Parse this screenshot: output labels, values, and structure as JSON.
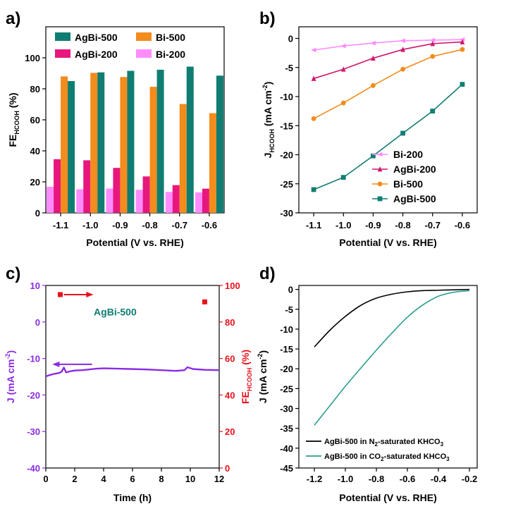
{
  "chart_data": [
    {
      "panel_label": "a)",
      "type": "bar",
      "categories": [
        "-1.1",
        "-1.0",
        "-0.9",
        "-0.8",
        "-0.7",
        "-0.6"
      ],
      "xlabel": "Potential (V vs. RHE)",
      "ylabel_main": "FE",
      "ylabel_sub": "HCOOH",
      "ylabel_unit": " (%)",
      "ylim": [
        0,
        120
      ],
      "yticks": [
        0,
        20,
        40,
        60,
        80,
        100
      ],
      "legend_position": "top",
      "series": [
        {
          "name": "Bi-200",
          "color": "#ff8cff",
          "values": [
            16.8,
            15.2,
            15.7,
            14.9,
            13.5,
            13.2
          ]
        },
        {
          "name": "AgBi-200",
          "color": "#e8177d",
          "values": [
            34.6,
            33.9,
            29.0,
            23.5,
            17.9,
            15.6
          ]
        },
        {
          "name": "Bi-500",
          "color": "#f28c1c",
          "values": [
            88.0,
            90.3,
            87.6,
            81.3,
            70.2,
            64.3
          ]
        },
        {
          "name": "AgBi-500",
          "color": "#0f7d72",
          "values": [
            85.0,
            90.6,
            91.6,
            92.3,
            94.3,
            88.5
          ]
        }
      ],
      "legend_order": [
        "AgBi-500",
        "Bi-500",
        "AgBi-200",
        "Bi-200"
      ]
    },
    {
      "panel_label": "b)",
      "type": "line",
      "x": [
        -1.1,
        -1.0,
        -0.9,
        -0.8,
        -0.7,
        -0.6
      ],
      "xticks": [
        "-1.1",
        "-1.0",
        "-0.9",
        "-0.8",
        "-0.7",
        "-0.6"
      ],
      "xlabel": "Potential (V vs. RHE)",
      "ylabel_main": "J",
      "ylabel_sub": "HCOOH",
      "ylabel_unit": " (mA cm",
      "ylabel_sup": "-2",
      "ylabel_end": ")",
      "ylim": [
        -30,
        2
      ],
      "yticks": [
        0,
        -5,
        -10,
        -15,
        -20,
        -25,
        -30
      ],
      "legend_position": "bottom-right",
      "series": [
        {
          "name": "Bi-200",
          "color": "#ff8cff",
          "marker": "triangle-left",
          "values": [
            -2.0,
            -1.3,
            -0.8,
            -0.4,
            -0.3,
            -0.2
          ]
        },
        {
          "name": "AgBi-200",
          "color": "#d0186c",
          "marker": "triangle-up",
          "values": [
            -6.9,
            -5.3,
            -3.4,
            -1.9,
            -0.9,
            -0.6
          ]
        },
        {
          "name": "Bi-500",
          "color": "#f28c1c",
          "marker": "circle",
          "values": [
            -13.8,
            -11.1,
            -8.1,
            -5.3,
            -3.1,
            -1.9
          ]
        },
        {
          "name": "AgBi-500",
          "color": "#0f7d72",
          "marker": "square",
          "values": [
            -26.0,
            -23.9,
            -20.2,
            -16.3,
            -12.5,
            -7.9
          ]
        }
      ]
    },
    {
      "panel_label": "c)",
      "type": "line",
      "annotation": "AgBi-500",
      "xlabel": "Time (h)",
      "xlim": [
        0,
        12
      ],
      "xticks": [
        0,
        2,
        4,
        6,
        8,
        10,
        12
      ],
      "ylabel_main": "J",
      "ylabel_unit": " (mA cm",
      "ylabel_sup": "-2",
      "ylabel_end": ")",
      "ylim": [
        -40,
        10
      ],
      "yticks": [
        10,
        0,
        -10,
        -20,
        -30,
        -40
      ],
      "y2label_main": "FE",
      "y2label_sub": "HCOOH",
      "y2label_unit": " (%)",
      "y2lim": [
        0,
        100
      ],
      "y2ticks": [
        100,
        80,
        60,
        40,
        20,
        0
      ],
      "left_color": "#8a2be2",
      "right_color": "#e8121b",
      "annotation_color": "#0f7d72",
      "series": [
        {
          "name": "",
          "axis": "left",
          "x": [
            0,
            0.3,
            0.6,
            0.9,
            1.1,
            1.25,
            1.4,
            1.7,
            2.0,
            2.5,
            3.0,
            3.5,
            4.0,
            5.0,
            6.0,
            7.0,
            8.0,
            9.0,
            9.6,
            9.8,
            10.2,
            11.0,
            12.0
          ],
          "y": [
            -14.9,
            -14.5,
            -14.2,
            -14.0,
            -13.6,
            -12.5,
            -13.8,
            -13.5,
            -13.3,
            -13.2,
            -13.0,
            -12.8,
            -12.7,
            -12.8,
            -12.9,
            -13.0,
            -13.2,
            -13.4,
            -13.2,
            -12.4,
            -12.9,
            -13.1,
            -13.2
          ]
        },
        {
          "name": "",
          "axis": "right",
          "x": [
            1.0,
            11.0
          ],
          "y": [
            95,
            91
          ]
        }
      ]
    },
    {
      "panel_label": "d)",
      "type": "line",
      "xlabel": "Potential (V vs. RHE)",
      "xlim": [
        -1.3,
        -0.15
      ],
      "xticks": [
        -1.2,
        -1.0,
        -0.8,
        -0.6,
        -0.4,
        -0.2
      ],
      "xtick_labels": [
        "-1.2",
        "-1.0",
        "-0.8",
        "-0.6",
        "-0.4",
        "-0.2"
      ],
      "ylabel_main": "J",
      "ylabel_unit": " (mA cm",
      "ylabel_sup": "-2",
      "ylabel_end": ")",
      "ylim": [
        -45,
        1
      ],
      "yticks": [
        0,
        -5,
        -10,
        -15,
        -20,
        -25,
        -30,
        -35,
        -40,
        -45
      ],
      "legend_position": "bottom-right",
      "series": [
        {
          "name": "AgBi-500 in N2-saturated KHCO3",
          "legend_pre": "AgBi-500 in N",
          "legend_sub": "2",
          "legend_mid": "-saturated KHCO",
          "legend_sub2": "3",
          "color": "#000000",
          "x": [
            -1.2,
            -1.1,
            -1.0,
            -0.9,
            -0.8,
            -0.7,
            -0.6,
            -0.5,
            -0.4,
            -0.3,
            -0.2
          ],
          "y": [
            -14.5,
            -10.3,
            -6.8,
            -4.0,
            -2.2,
            -1.2,
            -0.6,
            -0.3,
            -0.2,
            -0.1,
            0.0
          ]
        },
        {
          "name": "AgBi-500 in CO2-saturated KHCO3",
          "legend_pre": "AgBi-500 in CO",
          "legend_sub": "2",
          "legend_mid": "-saturated KHCO",
          "legend_sub2": "3",
          "color": "#2a9d8f",
          "x": [
            -1.2,
            -1.1,
            -1.0,
            -0.9,
            -0.8,
            -0.7,
            -0.6,
            -0.5,
            -0.4,
            -0.3,
            -0.2
          ],
          "y": [
            -34.2,
            -29.3,
            -24.4,
            -19.8,
            -15.3,
            -11.0,
            -7.0,
            -3.9,
            -1.7,
            -0.7,
            -0.3
          ]
        }
      ]
    }
  ]
}
